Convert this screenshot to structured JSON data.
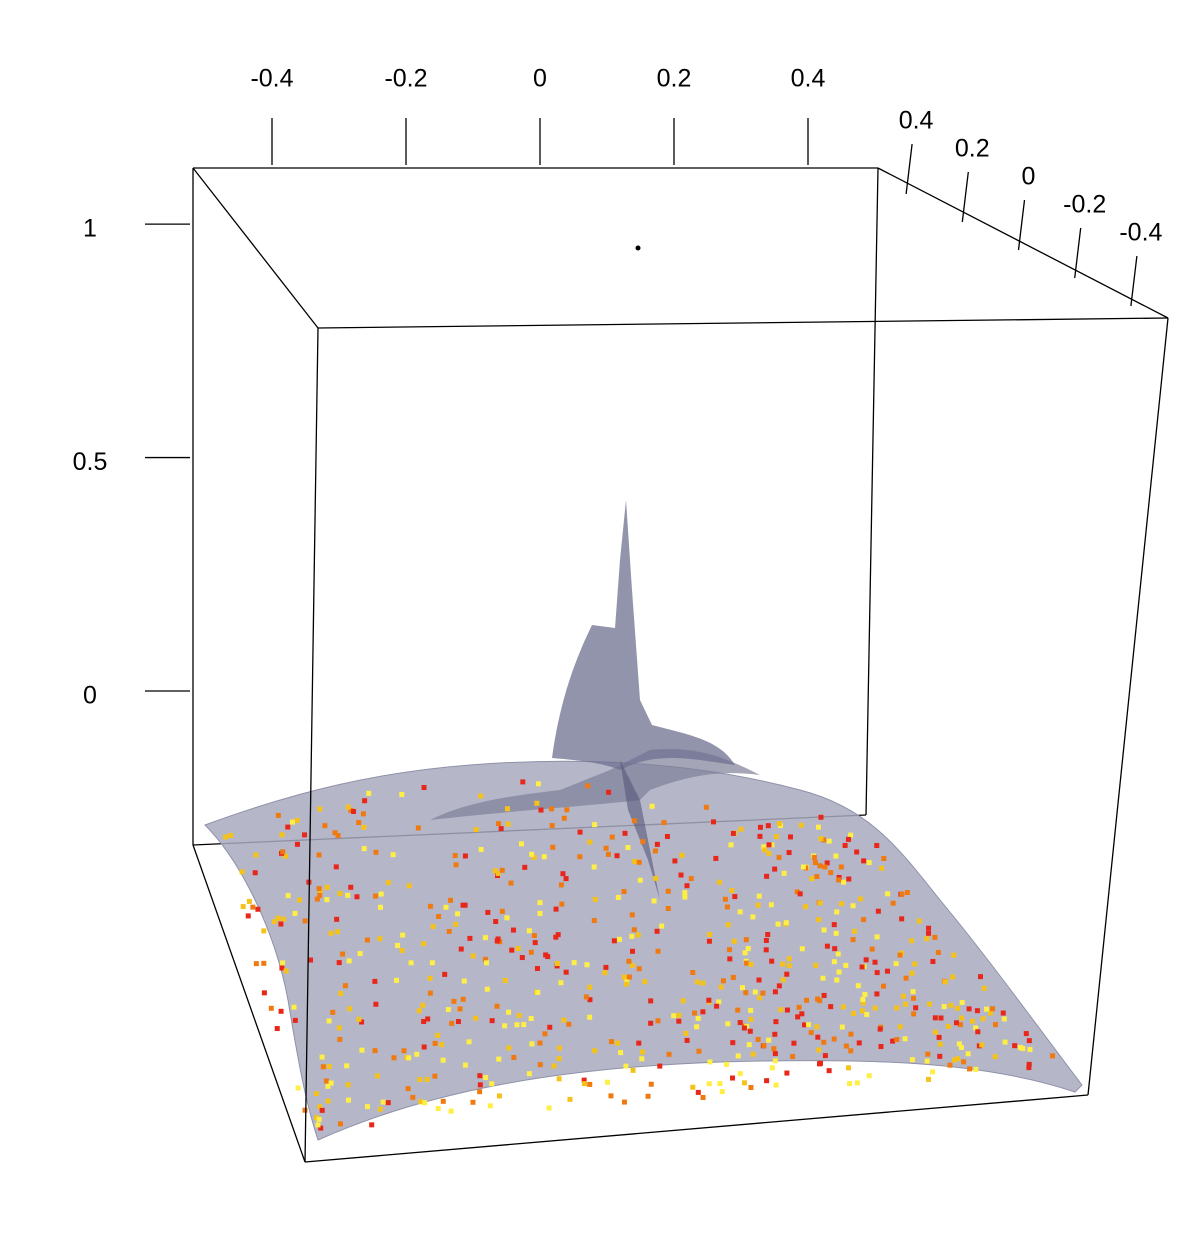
{
  "chart_data": {
    "type": "surface3d",
    "xlim": [
      -0.5,
      0.5
    ],
    "xticks": [
      -0.4,
      -0.2,
      0,
      0.2,
      0.4
    ],
    "ylim": [
      -0.5,
      0.5
    ],
    "yticks": [
      0.4,
      0.2,
      0,
      -0.2,
      -0.4
    ],
    "zlim": [
      -0.33,
      1.12
    ],
    "zticks": [
      1,
      0.5,
      0
    ],
    "surface_color": "#a8aabf",
    "point_colors": [
      "#e8261a",
      "#f07a10",
      "#f5c21a",
      "#ffee44"
    ]
  }
}
